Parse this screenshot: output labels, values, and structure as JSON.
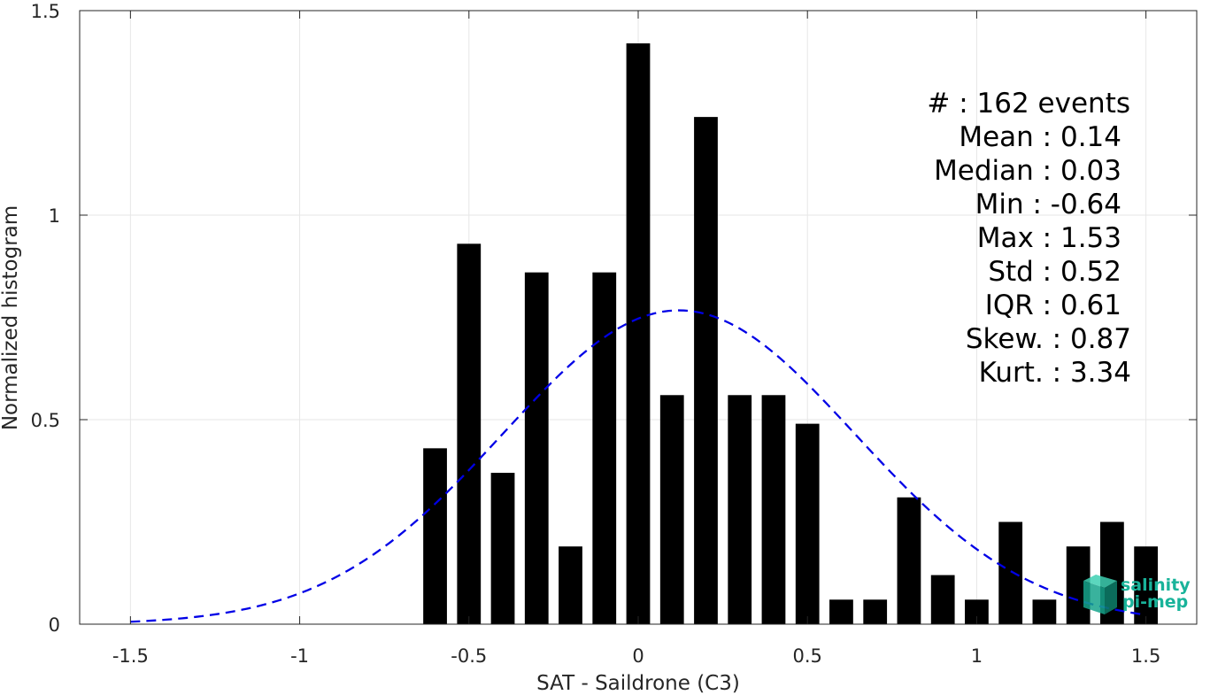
{
  "chart_data": {
    "type": "bar",
    "xlabel": "SAT - Saildrone (C3)",
    "ylabel": "Normalized histogram",
    "xlim": [
      -1.65,
      1.65
    ],
    "ylim": [
      0,
      1.5
    ],
    "xticks": [
      -1.5,
      -1,
      -0.5,
      0,
      0.5,
      1,
      1.5
    ],
    "xtick_labels": [
      "-1.5",
      "-1",
      "-0.5",
      "0",
      "0.5",
      "1",
      "1.5"
    ],
    "yticks": [
      0,
      0.5,
      1,
      1.5
    ],
    "ytick_labels": [
      "0",
      "0.5",
      "1",
      "1.5"
    ],
    "grid": true,
    "bar_color": "#000000",
    "bar_width": 0.07,
    "bins": [
      {
        "x": -0.6,
        "value": 0.43
      },
      {
        "x": -0.5,
        "value": 0.93
      },
      {
        "x": -0.4,
        "value": 0.37
      },
      {
        "x": -0.3,
        "value": 0.86
      },
      {
        "x": -0.2,
        "value": 0.19
      },
      {
        "x": -0.1,
        "value": 0.86
      },
      {
        "x": 0.0,
        "value": 1.42
      },
      {
        "x": 0.1,
        "value": 0.56
      },
      {
        "x": 0.2,
        "value": 1.24
      },
      {
        "x": 0.3,
        "value": 0.56
      },
      {
        "x": 0.4,
        "value": 0.56
      },
      {
        "x": 0.5,
        "value": 0.49
      },
      {
        "x": 0.6,
        "value": 0.06
      },
      {
        "x": 0.7,
        "value": 0.06
      },
      {
        "x": 0.8,
        "value": 0.31
      },
      {
        "x": 0.9,
        "value": 0.12
      },
      {
        "x": 1.0,
        "value": 0.06
      },
      {
        "x": 1.1,
        "value": 0.25
      },
      {
        "x": 1.2,
        "value": 0.06
      },
      {
        "x": 1.3,
        "value": 0.19
      },
      {
        "x": 1.4,
        "value": 0.25
      },
      {
        "x": 1.5,
        "value": 0.19
      }
    ],
    "fit_curve": {
      "style": "dashed",
      "color": "#0000e6",
      "mean": 0.12,
      "std": 0.52,
      "x_range": [
        -1.5,
        1.5
      ]
    }
  },
  "stats": [
    {
      "label": "#  : 162 events"
    },
    {
      "label": "Mean : 0.14"
    },
    {
      "label": "Median : 0.03"
    },
    {
      "label": "Min : -0.64"
    },
    {
      "label": "Max : 1.53"
    },
    {
      "label": "Std : 0.52"
    },
    {
      "label": "IQR : 0.61"
    },
    {
      "label": "Skew. : 0.87"
    },
    {
      "label": "Kurt. : 3.34"
    }
  ],
  "logo": {
    "line1": "salinity",
    "line2": "pi-mep",
    "color": "#19b39a"
  }
}
